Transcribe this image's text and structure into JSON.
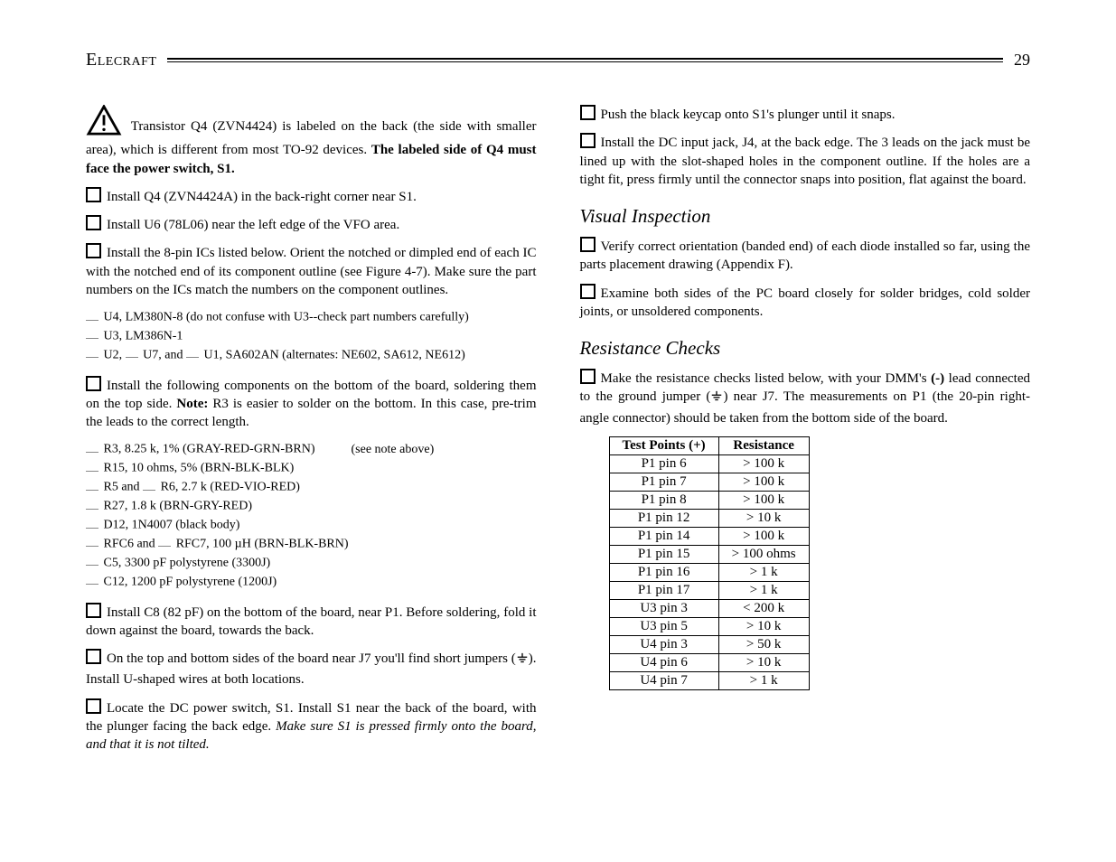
{
  "header": {
    "brand": "Elecraft",
    "page": "29"
  },
  "left": {
    "warn_para": {
      "pre": "Transistor Q4 (ZVN4424) is labeled on the back (the side with smaller area), which is different from most TO-92 devices. ",
      "bold": "The labeled side of Q4 must face the power switch, S1."
    },
    "step_q4": "Install Q4 (ZVN4424A) in the back-right corner near S1.",
    "step_u6": "Install U6 (78L06) near the left edge of the VFO area.",
    "step_ics": "Install the 8-pin ICs listed below. Orient the notched or dimpled end of each IC with the notched end of its component outline (see Figure 4-7). Make sure the part numbers on the ICs match the numbers on the component outlines.",
    "ic_list": [
      "U4, LM380N-8 (do not confuse with U3--check part numbers carefully)",
      "U3, LM386N-1"
    ],
    "ic_line3": {
      "a": "U2,",
      "b": "U7,  and",
      "c": "U1, SA602AN (alternates: NE602, SA612, NE612)"
    },
    "step_bottom": {
      "pre": "Install the following components on the bottom of the board, soldering them on the top side. ",
      "note_label": "Note:",
      "post": " R3 is easier to solder on the bottom. In this case, pre-trim the leads to the correct length."
    },
    "bottom_list": {
      "r3": {
        "text": "R3, 8.25 k, 1% (GRAY-RED-GRN-BRN)",
        "note": "(see note above)"
      },
      "r15": "R15, 10 ohms, 5% (BRN-BLK-BLK)",
      "r5r6": {
        "a": "R5 and",
        "b": "R6, 2.7 k (RED-VIO-RED)"
      },
      "r27": "R27, 1.8 k (BRN-GRY-RED)",
      "d12": "D12, 1N4007 (black body)",
      "rfc": {
        "a": "RFC6 and",
        "b": "RFC7, 100 µH (BRN-BLK-BRN)"
      },
      "c5": "C5, 3300 pF polystyrene (3300J)",
      "c12": "C12, 1200 pF polystyrene (1200J)"
    },
    "step_c8": "Install C8 (82 pF) on the bottom of the board, near P1. Before soldering, fold it down against the board, towards the back.",
    "step_j7": {
      "pre": "On the top and bottom sides of the board near J7 you'll find short jumpers (",
      "post": "). Install U-shaped wires at both locations."
    },
    "step_s1": {
      "pre": "Locate the DC power switch, S1. Install S1 near the back of the board, with the plunger facing the back edge. ",
      "ital": "Make sure S1 is pressed firmly onto the board, and that it is not tilted."
    }
  },
  "right": {
    "step_keycap": "Push the black keycap onto S1's plunger until it snaps.",
    "step_j4": "Install the DC input jack, J4, at the back edge. The 3 leads on the jack must be lined up with the slot-shaped holes in the component outline. If the holes are a tight fit, press firmly until the connector snaps into position, flat against the board.",
    "sec_visual": "Visual Inspection",
    "step_diode": "Verify correct orientation (banded end) of each diode installed so far, using the parts placement drawing (Appendix F).",
    "step_bridges": "Examine both sides of the PC board closely for solder bridges, cold solder joints, or unsoldered components.",
    "sec_res": "Resistance Checks",
    "step_dmm": {
      "pre": "Make the resistance checks listed below, with your DMM's ",
      "neg": "(-)",
      "mid": " lead connected to the ground jumper (",
      "post": ") near J7. The measurements on P1 (the 20-pin right-angle connector) should be taken from the bottom side of the board."
    },
    "table": {
      "headers": [
        "Test Points (+)",
        "Resistance"
      ],
      "rows": [
        [
          "P1 pin 6",
          "> 100 k"
        ],
        [
          "P1 pin 7",
          "> 100 k"
        ],
        [
          "P1 pin 8",
          "> 100 k"
        ],
        [
          "P1 pin 12",
          "> 10 k"
        ],
        [
          "P1 pin 14",
          "> 100 k"
        ],
        [
          "P1 pin 15",
          "> 100 ohms"
        ],
        [
          "P1 pin 16",
          "> 1 k"
        ],
        [
          "P1 pin 17",
          "> 1 k"
        ],
        [
          "U3 pin 3",
          "< 200 k"
        ],
        [
          "U3 pin 5",
          "> 10 k"
        ],
        [
          "U4 pin 3",
          "> 50 k"
        ],
        [
          "U4 pin 6",
          "> 10 k"
        ],
        [
          "U4 pin 7",
          "> 1 k"
        ]
      ]
    }
  }
}
